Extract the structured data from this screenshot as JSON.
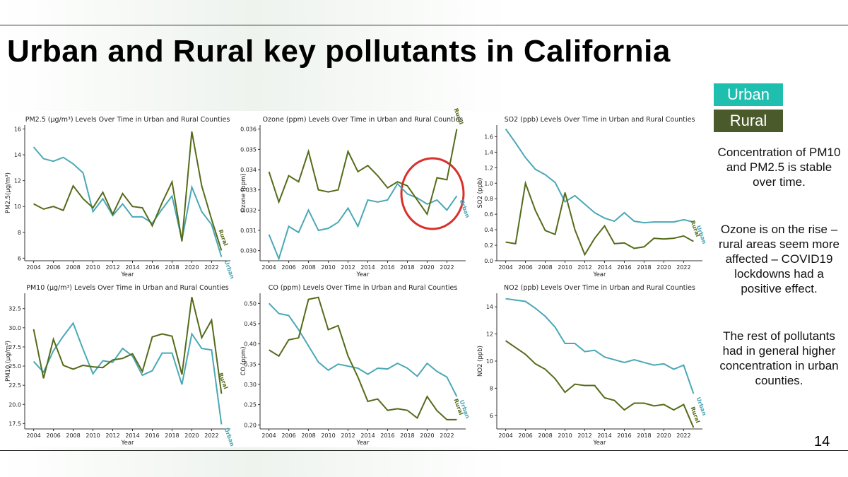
{
  "title": "Urban and Rural key pollutants in California",
  "legend": [
    {
      "name": "Urban",
      "color": "#1fbfb0"
    },
    {
      "name": "Rural",
      "color": "#4a5a2a"
    }
  ],
  "notes": [
    "Concentration of PM10 and PM2.5 is stable over time.",
    "Ozone is on the rise – rural areas seem more affected – COVID19 lockdowns had a positive effect.",
    "The rest of pollutants had in general higher concentration in urban counties."
  ],
  "page_number": "14",
  "chart_data": [
    {
      "type": "line",
      "title": "PM2.5 (µg/m³) Levels Over Time in Urban and Rural Counties",
      "x_label": "Year",
      "y_label": "PM2.5(µg/m³)",
      "x": [
        2004,
        2005,
        2006,
        2007,
        2008,
        2009,
        2010,
        2011,
        2012,
        2013,
        2014,
        2015,
        2016,
        2017,
        2018,
        2019,
        2020,
        2021,
        2022,
        2023
      ],
      "xlim": [
        2003.1,
        2023.9
      ],
      "xticks": [
        2004,
        2006,
        2008,
        2010,
        2012,
        2014,
        2016,
        2018,
        2020,
        2022
      ],
      "ylim": [
        5.8,
        16.3
      ],
      "yticks": [
        6,
        8,
        10,
        12,
        14,
        16
      ],
      "series": [
        {
          "name": "Urban",
          "color": "#4aa8b5",
          "values": [
            14.6,
            13.7,
            13.5,
            13.8,
            13.3,
            12.6,
            9.6,
            10.6,
            9.3,
            10.2,
            9.2,
            9.2,
            8.7,
            9.8,
            10.8,
            7.4,
            11.5,
            9.6,
            8.6,
            6.1
          ]
        },
        {
          "name": "Rural",
          "color": "#556b1a",
          "values": [
            10.2,
            9.8,
            10.0,
            9.7,
            11.6,
            10.6,
            9.9,
            11.1,
            9.4,
            11.0,
            10.0,
            9.9,
            8.5,
            10.3,
            11.9,
            7.3,
            15.8,
            11.6,
            9.0,
            6.6
          ]
        }
      ]
    },
    {
      "type": "line",
      "title": "Ozone (ppm) Levels Over Time in Urban and Rural Counties",
      "x_label": "Year",
      "y_label": "Ozone (ppm)",
      "x": [
        2004,
        2005,
        2006,
        2007,
        2008,
        2009,
        2010,
        2011,
        2012,
        2013,
        2014,
        2015,
        2016,
        2017,
        2018,
        2019,
        2020,
        2021,
        2022,
        2023
      ],
      "xlim": [
        2003.1,
        2023.9
      ],
      "xticks": [
        2004,
        2006,
        2008,
        2010,
        2012,
        2014,
        2016,
        2018,
        2020,
        2022
      ],
      "ylim": [
        0.0295,
        0.0362
      ],
      "yticks": [
        {
          "value": 0.03,
          "label": "0.030"
        },
        0.031,
        0.032,
        0.033,
        0.034,
        0.035,
        0.036
      ],
      "series": [
        {
          "name": "Urban",
          "color": "#4aa8b5",
          "values": [
            0.0308,
            0.0296,
            0.0312,
            0.0309,
            0.032,
            0.031,
            0.0311,
            0.0314,
            0.0321,
            0.0312,
            0.0325,
            0.0324,
            0.0325,
            0.0333,
            0.0328,
            0.0326,
            0.0323,
            0.0325,
            0.032,
            0.0327
          ]
        },
        {
          "name": "Rural",
          "color": "#556b1a",
          "values": [
            0.0339,
            0.0324,
            0.0337,
            0.0334,
            0.0349,
            0.033,
            0.0329,
            0.033,
            0.0349,
            0.0339,
            0.0342,
            0.0337,
            0.0331,
            0.0334,
            0.0332,
            0.0325,
            0.0318,
            0.0336,
            0.0335,
            0.036
          ]
        }
      ]
    },
    {
      "type": "line",
      "title": "SO2 (ppb) Levels Over Time in Urban and Rural Counties",
      "x_label": "Year",
      "y_label": "SO2 (ppb)",
      "x": [
        2004,
        2005,
        2006,
        2007,
        2008,
        2009,
        2010,
        2011,
        2012,
        2013,
        2014,
        2015,
        2016,
        2017,
        2018,
        2019,
        2020,
        2021,
        2022,
        2023
      ],
      "xlim": [
        2003.1,
        2023.9
      ],
      "xticks": [
        2004,
        2006,
        2008,
        2010,
        2012,
        2014,
        2016,
        2018,
        2020,
        2022
      ],
      "ylim": [
        0,
        1.75
      ],
      "yticks": [
        {
          "value": 0,
          "label": "0.0"
        },
        0.2,
        0.4,
        0.6,
        0.8,
        {
          "value": 1,
          "label": "1.0"
        },
        1.2,
        1.4,
        1.6
      ],
      "series": [
        {
          "name": "Urban",
          "color": "#4aa8b5",
          "values": [
            1.7,
            1.52,
            1.33,
            1.18,
            1.11,
            1.01,
            0.76,
            0.84,
            0.73,
            0.62,
            0.55,
            0.51,
            0.62,
            0.51,
            0.49,
            0.5,
            0.5,
            0.5,
            0.53,
            0.5
          ]
        },
        {
          "name": "Rural",
          "color": "#556b1a",
          "values": [
            0.24,
            0.22,
            1.0,
            0.65,
            0.39,
            0.34,
            0.88,
            0.4,
            0.08,
            0.29,
            0.45,
            0.22,
            0.23,
            0.16,
            0.18,
            0.29,
            0.28,
            0.29,
            0.32,
            0.25
          ]
        }
      ]
    },
    {
      "type": "line",
      "title": "PM10 (µg/m³) Levels Over Time in Urban and Rural Counties",
      "x_label": "Year",
      "y_label": "PM10 (µg/m³)",
      "x": [
        2004,
        2005,
        2006,
        2007,
        2008,
        2009,
        2010,
        2011,
        2012,
        2013,
        2014,
        2015,
        2016,
        2017,
        2018,
        2019,
        2020,
        2021,
        2022,
        2023
      ],
      "xlim": [
        2003.1,
        2023.9
      ],
      "xticks": [
        2004,
        2006,
        2008,
        2010,
        2012,
        2014,
        2016,
        2018,
        2020,
        2022
      ],
      "ylim": [
        16.8,
        34.5
      ],
      "yticks": [
        17.5,
        {
          "value": 20,
          "label": "20.0"
        },
        22.5,
        {
          "value": 25,
          "label": "25.0"
        },
        27.5,
        {
          "value": 30,
          "label": "30.0"
        },
        32.5
      ],
      "series": [
        {
          "name": "Urban",
          "color": "#4aa8b5",
          "values": [
            25.6,
            24.2,
            27.0,
            28.9,
            30.6,
            27.2,
            24.0,
            25.7,
            25.5,
            27.3,
            26.3,
            23.8,
            24.4,
            26.7,
            26.7,
            22.6,
            29.2,
            27.3,
            27.1,
            17.4
          ]
        },
        {
          "name": "Rural",
          "color": "#556b1a",
          "values": [
            29.8,
            23.4,
            28.5,
            25.1,
            24.6,
            25.1,
            24.9,
            24.8,
            25.8,
            26.0,
            26.6,
            24.3,
            28.8,
            29.2,
            28.9,
            23.9,
            34.0,
            28.7,
            31.0,
            21.4
          ]
        }
      ]
    },
    {
      "type": "line",
      "title": "CO (ppm) Levels Over Time in Urban and Rural Counties",
      "x_label": "Year",
      "y_label": "CO (ppm)",
      "x": [
        2004,
        2005,
        2006,
        2007,
        2008,
        2009,
        2010,
        2011,
        2012,
        2013,
        2014,
        2015,
        2016,
        2017,
        2018,
        2019,
        2020,
        2021,
        2022,
        2023
      ],
      "xlim": [
        2003.1,
        2023.9
      ],
      "xticks": [
        2004,
        2006,
        2008,
        2010,
        2012,
        2014,
        2016,
        2018,
        2020,
        2022
      ],
      "ylim": [
        0.19,
        0.525
      ],
      "yticks": [
        {
          "value": 0.2,
          "label": "0.20"
        },
        0.25,
        {
          "value": 0.3,
          "label": "0.30"
        },
        0.35,
        {
          "value": 0.4,
          "label": "0.40"
        },
        0.45,
        {
          "value": 0.5,
          "label": "0.50"
        }
      ],
      "series": [
        {
          "name": "Urban",
          "color": "#4aa8b5",
          "values": [
            0.5,
            0.475,
            0.47,
            0.435,
            0.395,
            0.355,
            0.335,
            0.35,
            0.345,
            0.34,
            0.325,
            0.34,
            0.338,
            0.352,
            0.34,
            0.32,
            0.352,
            0.332,
            0.318,
            0.27
          ]
        },
        {
          "name": "Rural",
          "color": "#556b1a",
          "values": [
            0.385,
            0.37,
            0.41,
            0.415,
            0.51,
            0.515,
            0.435,
            0.445,
            0.37,
            0.318,
            0.258,
            0.264,
            0.236,
            0.24,
            0.236,
            0.217,
            0.27,
            0.235,
            0.213,
            0.213
          ]
        }
      ]
    },
    {
      "type": "line",
      "title": "NO2 (ppb) Levels Over Time in Urban and Rural Counties",
      "x_label": "Year",
      "y_label": "NO2 (ppb)",
      "x": [
        2004,
        2005,
        2006,
        2007,
        2008,
        2009,
        2010,
        2011,
        2012,
        2013,
        2014,
        2015,
        2016,
        2017,
        2018,
        2019,
        2020,
        2021,
        2022,
        2023
      ],
      "xlim": [
        2003.1,
        2023.9
      ],
      "xticks": [
        2004,
        2006,
        2008,
        2010,
        2012,
        2014,
        2016,
        2018,
        2020,
        2022
      ],
      "ylim": [
        5,
        15
      ],
      "yticks": [
        6,
        8,
        10,
        12,
        14
      ],
      "series": [
        {
          "name": "Urban",
          "color": "#4aa8b5",
          "values": [
            14.6,
            14.5,
            14.4,
            13.9,
            13.3,
            12.5,
            11.3,
            11.3,
            10.7,
            10.8,
            10.3,
            10.1,
            9.9,
            10.1,
            9.9,
            9.7,
            9.8,
            9.4,
            9.7,
            7.6
          ]
        },
        {
          "name": "Rural",
          "color": "#556b1a",
          "values": [
            11.5,
            11.0,
            10.5,
            9.8,
            9.4,
            8.7,
            7.7,
            8.3,
            8.2,
            8.2,
            7.3,
            7.1,
            6.4,
            6.9,
            6.9,
            6.7,
            6.8,
            6.4,
            6.8,
            5.1
          ]
        }
      ]
    }
  ]
}
